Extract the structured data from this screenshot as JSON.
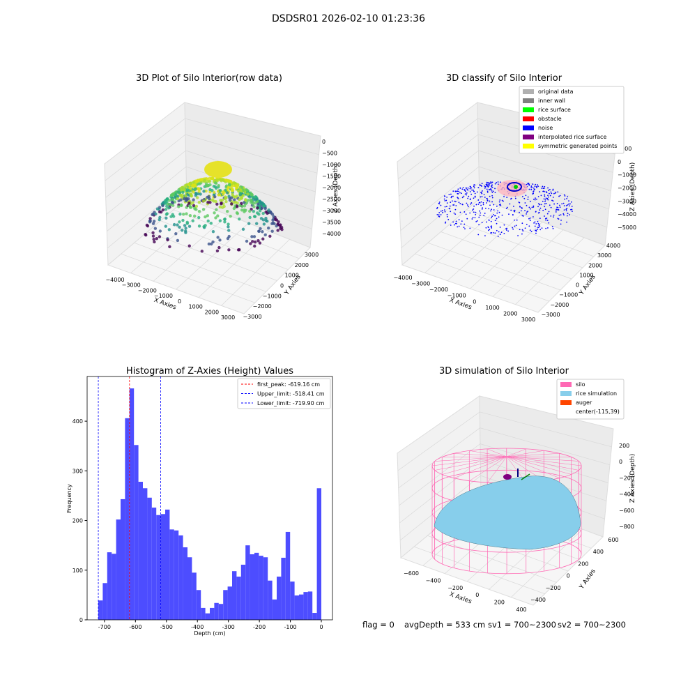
{
  "header": {
    "title": "DSDSR01 2026-02-10 01:23:36"
  },
  "panels": [
    {
      "title": "3D Plot of Silo Interior(row data)",
      "xlabel": "X Axies",
      "ylabel": "Y Axies",
      "zlabel": "Z Axies (Depth)",
      "xticks": [
        "−4000",
        "−3000",
        "−2000",
        "−1000",
        "0",
        "1000",
        "2000",
        "3000"
      ],
      "yticks": [
        "−3000",
        "−2000",
        "−1000",
        "0",
        "1000",
        "2000",
        "3000"
      ],
      "zticks": [
        "0",
        "−500",
        "−1000",
        "−1500",
        "−2000",
        "−2500",
        "−3000",
        "−3500",
        "−4000"
      ]
    },
    {
      "title": "3D classify of Silo Interior",
      "xlabel": "X Axies",
      "ylabel": "Y Axies",
      "zlabel": "Z Axies (Depth)",
      "xticks": [
        "−4000",
        "−3000",
        "−2000",
        "−1000",
        "0",
        "1000",
        "2000",
        "3000"
      ],
      "yticks": [
        "−3000",
        "−2000",
        "−1000",
        "0",
        "1000",
        "2000",
        "3000",
        "4000"
      ],
      "zticks": [
        "1000",
        "0",
        "−1000",
        "−2000",
        "−3000",
        "−4000",
        "−5000"
      ],
      "legend": [
        {
          "name": "original data",
          "color": "#b0b0b0"
        },
        {
          "name": "inner wall",
          "color": "#808080"
        },
        {
          "name": "rice surface",
          "color": "#00ff00"
        },
        {
          "name": "obstacle",
          "color": "#ff0000"
        },
        {
          "name": "noise",
          "color": "#0000ff"
        },
        {
          "name": "interpolated rice surface",
          "color": "#800080"
        },
        {
          "name": "symmetric generated points",
          "color": "#ffff00"
        }
      ]
    },
    {
      "title": "3D simulation of Silo Interior",
      "xlabel": "X Axies",
      "ylabel": "Y Axies",
      "zlabel": "Z Axies (Depth)",
      "xticks": [
        "−600",
        "−400",
        "−200",
        "0",
        "200",
        "400"
      ],
      "yticks": [
        "−400",
        "−200",
        "0",
        "200",
        "400",
        "600"
      ],
      "zticks": [
        "200",
        "0",
        "−200",
        "−400",
        "−600",
        "−800"
      ],
      "legend": [
        {
          "name": "silo",
          "color": "#ff69b4"
        },
        {
          "name": "rice simulation",
          "color": "#87ceeb"
        },
        {
          "name": "auger",
          "color": "#ff4500"
        },
        {
          "name": "center(-115,39)",
          "color": null
        }
      ]
    }
  ],
  "chart_data": {
    "type": "histogram",
    "title": "Histogram of Z-Axies (Height) Values",
    "x_label": "Depth (cm)",
    "y_label": "Frequency",
    "color": "#4d4dff",
    "bins": [
      -720,
      -705.6,
      -691.2,
      -676.8,
      -662.4,
      -648,
      -633.6,
      -619.2,
      -604.8,
      -590.4,
      -576,
      -561.6,
      -547.2,
      -532.8,
      -518.4,
      -504,
      -489.6,
      -475.2,
      -460.8,
      -446.4,
      -432,
      -417.6,
      -403.2,
      -388.8,
      -374.4,
      -360,
      -345.6,
      -331.2,
      -316.8,
      -302.4,
      -288,
      -273.6,
      -259.2,
      -244.8,
      -230.4,
      -216,
      -201.6,
      -187.2,
      -172.8,
      -158.4,
      -144,
      -129.6,
      -115.2,
      -100.8,
      -86.4,
      -72,
      -57.6,
      -43.2,
      -28.8,
      -14.4,
      0
    ],
    "values": [
      39,
      74,
      136,
      133,
      202,
      243,
      406,
      466,
      352,
      278,
      265,
      246,
      226,
      211,
      213,
      222,
      182,
      180,
      170,
      146,
      126,
      95,
      60,
      24,
      13,
      24,
      34,
      32,
      60,
      67,
      98,
      87,
      111,
      150,
      132,
      135,
      129,
      126,
      79,
      41,
      87,
      125,
      177,
      77,
      49,
      51,
      56,
      57,
      14,
      265
    ],
    "xlim": [
      -756,
      36
    ],
    "ylim": [
      0,
      490
    ],
    "xticks": [
      -700,
      -600,
      -500,
      -400,
      -300,
      -200,
      -100,
      0
    ],
    "yticks": [
      0,
      100,
      200,
      300,
      400
    ],
    "lines": [
      {
        "value": -619.16,
        "label": "first_peak: -619.16 cm",
        "color": "#ff0000"
      },
      {
        "value": -518.41,
        "label": "Upper_limit: -518.41 cm",
        "color": "#0000ff"
      },
      {
        "value": -719.9,
        "label": "Lower_limit: -719.90 cm",
        "color": "#0000ff"
      }
    ],
    "legend_position": "upper right"
  },
  "footer": [
    "flag = 0",
    "avgDepth = 533 cm",
    "sv1 = 700~2300",
    "sv2 = 700~2300"
  ]
}
